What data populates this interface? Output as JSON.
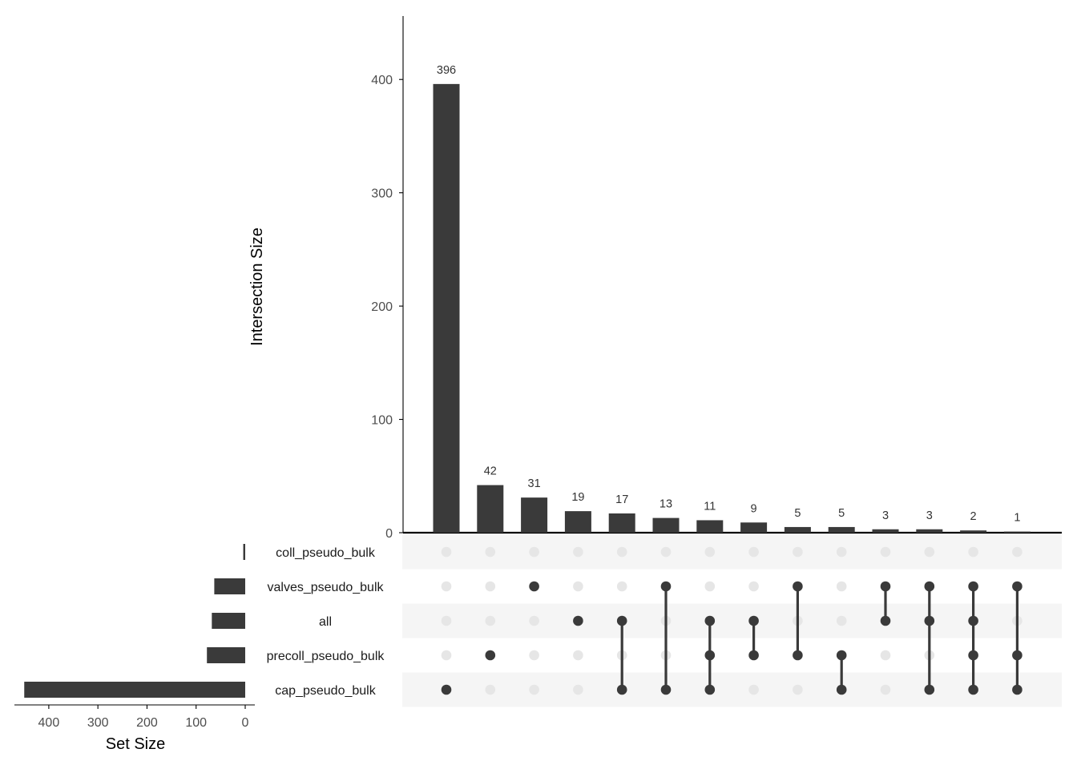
{
  "chart_data": {
    "type": "upset",
    "intersection_axis": {
      "title": "Intersection Size",
      "ylim": [
        0,
        456
      ],
      "ticks": [
        0,
        100,
        200,
        300,
        400
      ]
    },
    "set_size_axis": {
      "title": "Set Size",
      "xlim": [
        0,
        470
      ],
      "ticks": [
        0,
        100,
        200,
        300,
        400
      ],
      "reversed": true
    },
    "sets": [
      {
        "name": "coll_pseudo_bulk",
        "size": 4
      },
      {
        "name": "valves_pseudo_bulk",
        "size": 63
      },
      {
        "name": "all",
        "size": 68
      },
      {
        "name": "precoll_pseudo_bulk",
        "size": 78
      },
      {
        "name": "cap_pseudo_bulk",
        "size": 450
      }
    ],
    "intersections": [
      {
        "value": 396,
        "label": "396",
        "members": [
          "cap_pseudo_bulk"
        ]
      },
      {
        "value": 42,
        "label": "42",
        "members": [
          "precoll_pseudo_bulk"
        ]
      },
      {
        "value": 31,
        "label": "31",
        "members": [
          "valves_pseudo_bulk"
        ]
      },
      {
        "value": 19,
        "label": "19",
        "members": [
          "all"
        ]
      },
      {
        "value": 17,
        "label": "17",
        "members": [
          "all",
          "cap_pseudo_bulk"
        ]
      },
      {
        "value": 13,
        "label": "13",
        "members": [
          "valves_pseudo_bulk",
          "cap_pseudo_bulk"
        ]
      },
      {
        "value": 11,
        "label": "11",
        "members": [
          "all",
          "precoll_pseudo_bulk",
          "cap_pseudo_bulk"
        ]
      },
      {
        "value": 9,
        "label": "9",
        "members": [
          "all",
          "precoll_pseudo_bulk"
        ]
      },
      {
        "value": 5,
        "label": "5",
        "members": [
          "valves_pseudo_bulk",
          "precoll_pseudo_bulk"
        ]
      },
      {
        "value": 5,
        "label": "5",
        "members": [
          "precoll_pseudo_bulk",
          "cap_pseudo_bulk"
        ]
      },
      {
        "value": 3,
        "label": "3",
        "members": [
          "valves_pseudo_bulk",
          "all"
        ]
      },
      {
        "value": 3,
        "label": "3",
        "members": [
          "valves_pseudo_bulk",
          "all",
          "cap_pseudo_bulk"
        ]
      },
      {
        "value": 2,
        "label": "2",
        "members": [
          "valves_pseudo_bulk",
          "all",
          "precoll_pseudo_bulk",
          "cap_pseudo_bulk"
        ]
      },
      {
        "value": 1,
        "label": "1",
        "members": [
          "valves_pseudo_bulk",
          "precoll_pseudo_bulk",
          "cap_pseudo_bulk"
        ]
      }
    ],
    "colors": {
      "bar": "#3a3a3a",
      "dot_active": "#3a3a3a",
      "dot_inactive": "#e6e6e6",
      "stripe": "#f5f5f5",
      "axis": "#000000"
    },
    "grid": false
  }
}
